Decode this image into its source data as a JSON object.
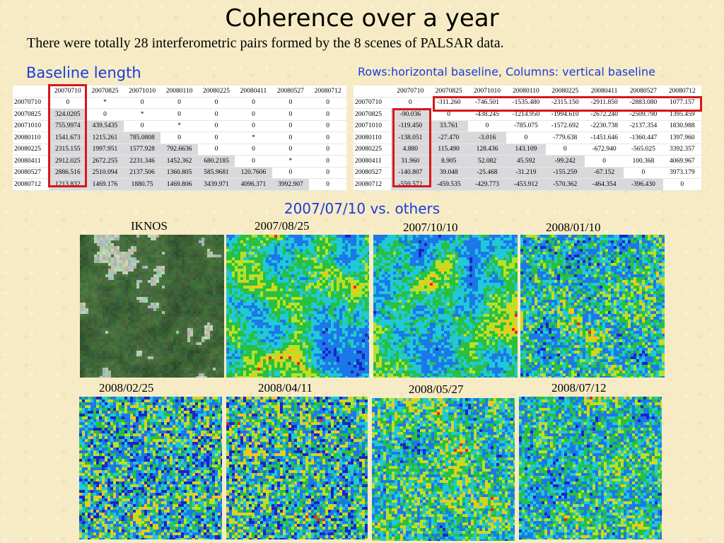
{
  "title": "Coherence over a year",
  "subtitle": "There were totally 28 interferometric pairs formed by the 8 scenes of PALSAR data.",
  "baseline_label": "Baseline length",
  "rows_cols_label": "Rows:horizontal baseline, Columns: vertical baseline",
  "comparison_label": "2007/07/10 vs. others",
  "colors": {
    "title_blue": "#1a3be0",
    "highlight_red": "#d7161b",
    "table_shade": "#d9d9dc",
    "coherence_low": "#1030c8",
    "coherence_mid": "#18c040",
    "coherence_high": "#e82010"
  },
  "table_baseline": {
    "headers": [
      "",
      "20070710",
      "20070825",
      "20071010",
      "20080110",
      "20080225",
      "20080411",
      "20080527",
      "20080712"
    ],
    "rows": [
      [
        "20070710",
        "0",
        "*",
        "0",
        "0",
        "0",
        "0",
        "0",
        "0"
      ],
      [
        "20070825",
        "324.0205",
        "0",
        "*",
        "0",
        "0",
        "0",
        "0",
        "0"
      ],
      [
        "20071010",
        "755.9974",
        "439.5435",
        "0",
        "*",
        "0",
        "0",
        "0",
        "0"
      ],
      [
        "20080110",
        "1541.673",
        "1215.261",
        "785.0808",
        "0",
        "0",
        "*",
        "0",
        "0"
      ],
      [
        "20080225",
        "2315.155",
        "1997.951",
        "1577.928",
        "792.6636",
        "0",
        "0",
        "0",
        "0"
      ],
      [
        "20080411",
        "2912.025",
        "2672.255",
        "2231.346",
        "1452.362",
        "680.2185",
        "0",
        "*",
        "0"
      ],
      [
        "20080527",
        "2886.516",
        "2510.094",
        "2137.506",
        "1360.805",
        "585.9681",
        "120.7606",
        "0",
        "0"
      ],
      [
        "20080712",
        "1213.832",
        "1469.176",
        "1880.75",
        "1469.806",
        "3439.971",
        "4096.371",
        "3992.907",
        "0"
      ]
    ]
  },
  "table_hv": {
    "headers": [
      "",
      "20070710",
      "20070825",
      "20071010",
      "20080110",
      "20080225",
      "20080411",
      "20080527",
      "20080712"
    ],
    "rows": [
      [
        "20070710",
        "0",
        "-311.260",
        "-746.501",
        "-1535.480",
        "-2315.150",
        "-2911.850",
        "-2883.080",
        "1077.157"
      ],
      [
        "20070825",
        "-90.036",
        "0",
        "-438.245",
        "-1214.950",
        "-1994.610",
        "-2672.240",
        "-2509.790",
        "1395.459"
      ],
      [
        "20071010",
        "-119.450",
        "33.761",
        "0",
        "-785.075",
        "-1572.692",
        "-2230.738",
        "-2137.354",
        "1830.988"
      ],
      [
        "20080110",
        "-138.051",
        "-27.470",
        "-3.016",
        "0",
        "-779.638",
        "-1451.646",
        "-1360.447",
        "1397.960"
      ],
      [
        "20080225",
        "4.880",
        "115.490",
        "128.436",
        "143.109",
        "0",
        "-672.940",
        "-565.025",
        "3392.357"
      ],
      [
        "20080411",
        "31.960",
        "8.905",
        "52.082",
        "45.592",
        "-99.242",
        "0",
        "100.368",
        "4069.967"
      ],
      [
        "20080527",
        "-140.807",
        "39.048",
        "-25.468",
        "-31.219",
        "-155.259",
        "-67.152",
        "0",
        "3973.179"
      ],
      [
        "20080712",
        "-559.572",
        "-459.535",
        "-429.773",
        "-453.912",
        "-570.362",
        "-464.354",
        "-396.430",
        "0"
      ]
    ]
  },
  "images": [
    {
      "caption": "IKNOS",
      "kind": "optical"
    },
    {
      "caption": "2007/08/25",
      "kind": "coherence-high"
    },
    {
      "caption": "2007/10/10",
      "kind": "coherence-high"
    },
    {
      "caption": "2008/01/10",
      "kind": "coherence-mid"
    },
    {
      "caption": "2008/02/25",
      "kind": "coherence-low"
    },
    {
      "caption": "2008/04/11",
      "kind": "coherence-low"
    },
    {
      "caption": "2008/05/27",
      "kind": "coherence-mid"
    },
    {
      "caption": "2008/07/12",
      "kind": "coherence-mid"
    }
  ]
}
